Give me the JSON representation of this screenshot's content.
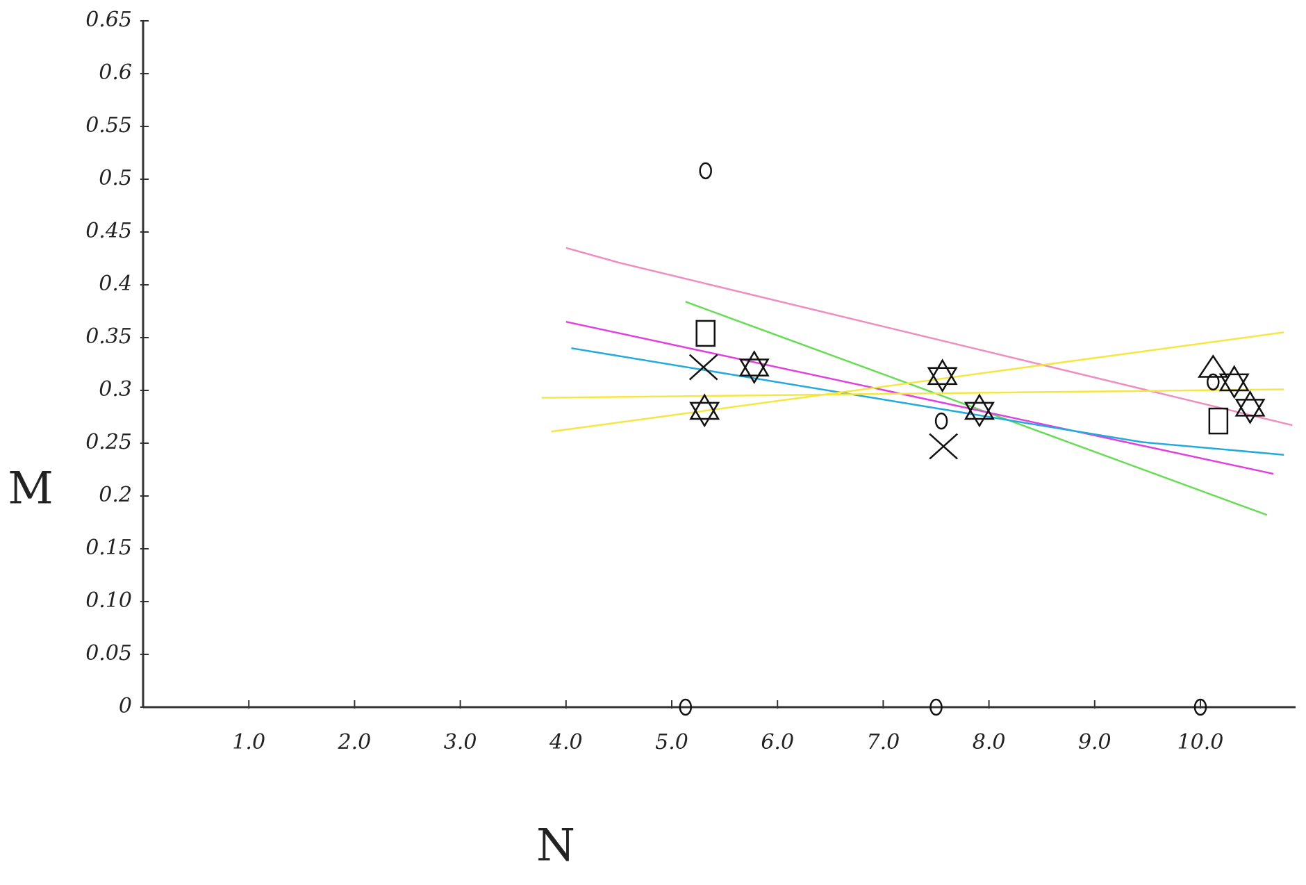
{
  "chart_data": {
    "type": "scatter",
    "x_label": "N",
    "y_label": "M",
    "xlim": [
      0,
      10.9
    ],
    "ylim": [
      0,
      0.65
    ],
    "xticks": [
      {
        "value": 1,
        "label": "1.0"
      },
      {
        "value": 2,
        "label": "2.0"
      },
      {
        "value": 3,
        "label": "3.0"
      },
      {
        "value": 4,
        "label": "4.0"
      },
      {
        "value": 5,
        "label": "5.0"
      },
      {
        "value": 6,
        "label": "6.0"
      },
      {
        "value": 7,
        "label": "7.0"
      },
      {
        "value": 8,
        "label": "8.0"
      },
      {
        "value": 9,
        "label": "9.0"
      },
      {
        "value": 10,
        "label": "10.0"
      }
    ],
    "yticks": [
      0,
      0.05,
      {
        "value": 0.1,
        "label": "0.10"
      },
      0.15,
      0.2,
      0.25,
      0.3,
      0.35,
      0.4,
      0.45,
      0.5,
      0.55,
      0.6,
      0.65
    ],
    "grid": false,
    "series": [
      {
        "marker": "line",
        "color": "#f08cc0",
        "x": [
          4.0,
          4.5,
          10.87
        ],
        "values": [
          0.435,
          0.421,
          0.267
        ]
      },
      {
        "marker": "line",
        "color": "#66dd55",
        "x": [
          5.13,
          10.63
        ],
        "values": [
          0.384,
          0.182
        ]
      },
      {
        "marker": "line",
        "color": "#e040e0",
        "x": [
          4.0,
          10.69
        ],
        "values": [
          0.365,
          0.221
        ]
      },
      {
        "marker": "line",
        "color": "#22aadd",
        "x": [
          4.05,
          9.45,
          10.79
        ],
        "values": [
          0.34,
          0.251,
          0.239
        ]
      },
      {
        "marker": "line",
        "color": "#f5e642",
        "x": [
          3.86,
          10.79
        ],
        "values": [
          0.261,
          0.355
        ]
      },
      {
        "marker": "line",
        "color": "#f5e642",
        "x": [
          3.77,
          10.79
        ],
        "values": [
          0.293,
          0.301
        ]
      },
      {
        "marker": "circle",
        "color": "#111111",
        "x": [
          5.32,
          5.13,
          7.55,
          7.5,
          10.12,
          10.0
        ],
        "values": [
          0.508,
          0,
          0.271,
          0,
          0.308,
          0
        ]
      },
      {
        "marker": "square",
        "color": "#111111",
        "x": [
          5.32,
          10.17
        ],
        "values": [
          0.354,
          0.271
        ]
      },
      {
        "marker": "cross",
        "color": "#111111",
        "x": [
          5.3,
          7.57
        ],
        "values": [
          0.322,
          0.247
        ]
      },
      {
        "marker": "star",
        "color": "#111111",
        "x": [
          5.78,
          5.31,
          7.56,
          7.91,
          10.32,
          10.47
        ],
        "values": [
          0.322,
          0.281,
          0.314,
          0.281,
          0.308,
          0.284
        ]
      },
      {
        "marker": "triangle",
        "color": "#111111",
        "x": [
          10.12
        ],
        "values": [
          0.322
        ]
      }
    ]
  }
}
